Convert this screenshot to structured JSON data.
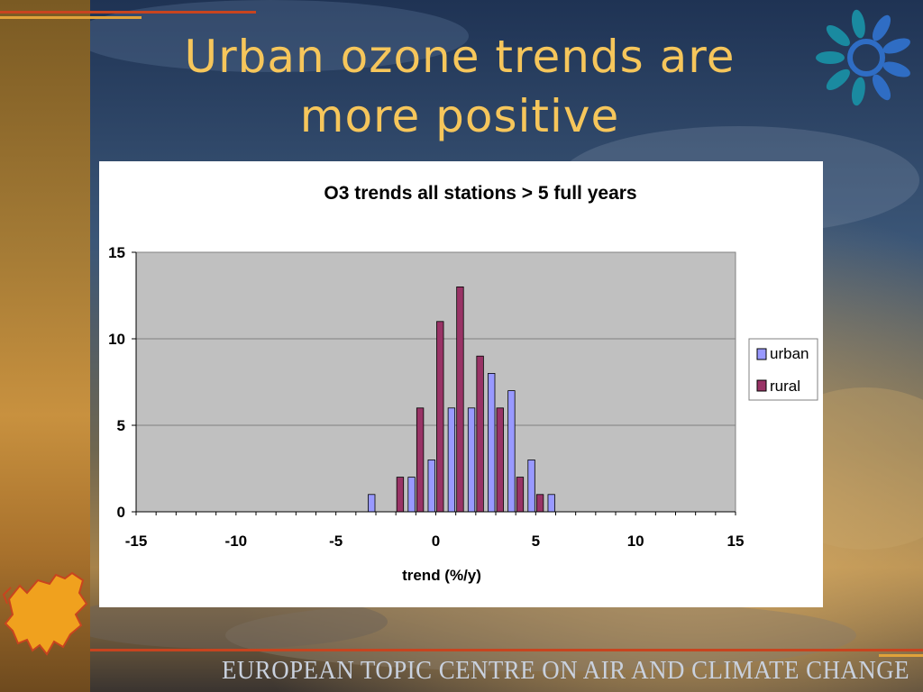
{
  "slide": {
    "title_line1": "Urban ozone trends are",
    "title_line2": "more positive",
    "footer": "EUROPEAN TOPIC CENTRE ON AIR AND CLIMATE CHANGE"
  },
  "colors": {
    "title": "#f6c65b",
    "urban": "#9999ff",
    "rural": "#993366",
    "plot_area": "#c0c0c0"
  },
  "chart_data": {
    "type": "bar",
    "title": "O3  trends all stations > 5 full years",
    "xlabel": "trend (%/y)",
    "ylabel": "",
    "xlim": [
      -15,
      15
    ],
    "ylim": [
      0,
      15
    ],
    "x_ticks": [
      -15,
      -10,
      -5,
      0,
      5,
      10,
      15
    ],
    "y_ticks": [
      0,
      5,
      10,
      15
    ],
    "grid": "horizontal",
    "legend_position": "right",
    "bins": [
      -4,
      -3,
      -2,
      -1,
      0,
      1,
      2,
      3,
      4,
      5,
      6
    ],
    "series": [
      {
        "name": "urban",
        "values": [
          0,
          1,
          0,
          2,
          3,
          6,
          6,
          8,
          7,
          3,
          1
        ]
      },
      {
        "name": "rural",
        "values": [
          0,
          0,
          2,
          6,
          11,
          13,
          9,
          6,
          2,
          1,
          0
        ]
      }
    ]
  }
}
